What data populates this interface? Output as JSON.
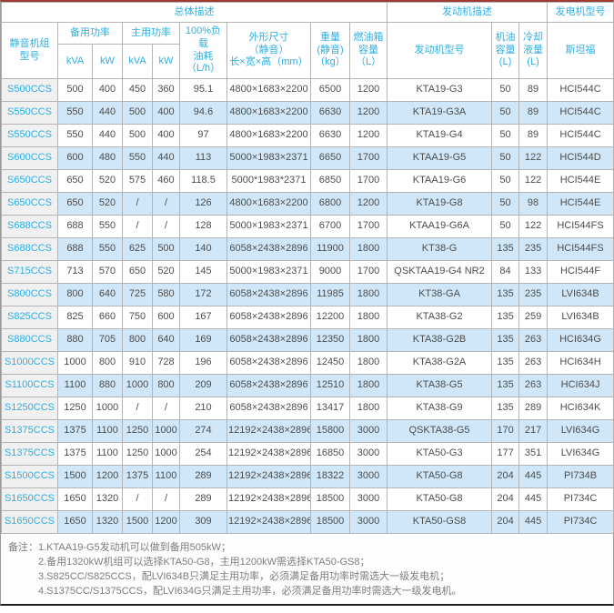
{
  "page": {
    "accent_color": "#9e3a32",
    "link_color": "#2eafe4",
    "alt_row_color": "#cfe7f8"
  },
  "table": {
    "group_headers": {
      "general": "总体描述",
      "engine": "发动机描述",
      "generator": "发电机型号"
    },
    "headers": {
      "model": "静音机组\n型号",
      "standby_power": "备用功率",
      "prime_power": "主用功率",
      "standby_kva": "kVA",
      "standby_kw": "kW",
      "prime_kva": "kVA",
      "prime_kw": "kW",
      "fuel_consumption": "100%负载\n油耗\n（L/h）",
      "dimensions": "外形尺寸\n（静音）\n长×宽×高（mm）",
      "weight": "重量\n(静音)\n（kg）",
      "fuel_tank": "燃油箱\n容量\n（L）",
      "engine_model": "发动机型号",
      "oil_capacity": "机油\n容量\n(L)",
      "coolant_capacity": "冷却\n液量\n(L)",
      "stamford": "斯坦福"
    },
    "rows": [
      [
        "S500CCS",
        "500",
        "400",
        "450",
        "360",
        "95.1",
        "4800×1683×2200",
        "6500",
        "1200",
        "KTA19-G3",
        "50",
        "89",
        "HCI544C"
      ],
      [
        "S550CCS",
        "550",
        "440",
        "500",
        "400",
        "94.6",
        "4800×1683×2200",
        "6630",
        "1200",
        "KTA19-G3A",
        "50",
        "89",
        "HCI544C"
      ],
      [
        "S550CCS",
        "550",
        "440",
        "500",
        "400",
        "97",
        "4800×1683×2200",
        "6630",
        "1200",
        "KTA19-G4",
        "50",
        "89",
        "HCI544C"
      ],
      [
        "S600CCS",
        "600",
        "480",
        "550",
        "440",
        "113",
        "5000×1983×2371",
        "6650",
        "1700",
        "KTAA19-G5",
        "50",
        "122",
        "HCI544D"
      ],
      [
        "S650CCS",
        "650",
        "520",
        "575",
        "460",
        "118.5",
        "5000*1983*2371",
        "6850",
        "1700",
        "KTAA19-G6",
        "50",
        "122",
        "HCI544E"
      ],
      [
        "S650CCS",
        "650",
        "520",
        "/",
        "/",
        "126",
        "4800×1683×2200",
        "6800",
        "1200",
        "KTA19-G8",
        "50",
        "98",
        "HCI544E"
      ],
      [
        "S688CCS",
        "688",
        "550",
        "/",
        "/",
        "128",
        "5000×1983×2371",
        "6700",
        "1700",
        "KTAA19-G6A",
        "50",
        "122",
        "HCI544FS"
      ],
      [
        "S688CCS",
        "688",
        "550",
        "625",
        "500",
        "140",
        "6058×2438×2896",
        "11900",
        "1800",
        "KT38-G",
        "135",
        "235",
        "HCI544FS"
      ],
      [
        "S715CCS",
        "713",
        "570",
        "650",
        "520",
        "145",
        "5000×1983×2371",
        "9000",
        "1700",
        "QSKTAA19-G4 NR2",
        "84",
        "133",
        "HCI544F"
      ],
      [
        "S800CCS",
        "800",
        "640",
        "725",
        "580",
        "172",
        "6058×2438×2896",
        "11985",
        "1800",
        "KT38-GA",
        "135",
        "235",
        "LVI634B"
      ],
      [
        "S825CCS",
        "825",
        "660",
        "750",
        "600",
        "167",
        "6058×2438×2896",
        "12200",
        "1800",
        "KTA38-G2",
        "135",
        "259",
        "LVI634B"
      ],
      [
        "S880CCS",
        "880",
        "705",
        "800",
        "640",
        "169",
        "6058×2438×2896",
        "12350",
        "1800",
        "KTA38-G2B",
        "135",
        "263",
        "HCI634G"
      ],
      [
        "S1000CCS",
        "1000",
        "800",
        "910",
        "728",
        "196",
        "6058×2438×2896",
        "12450",
        "1800",
        "KTA38-G2A",
        "135",
        "263",
        "HCI634H"
      ],
      [
        "S1100CCS",
        "1100",
        "880",
        "1000",
        "800",
        "209",
        "6058×2438×2896",
        "12510",
        "1800",
        "KTA38-G5",
        "135",
        "263",
        "HCI634J"
      ],
      [
        "S1250CCS",
        "1250",
        "1000",
        "/",
        "/",
        "210",
        "6058×2438×2896",
        "13417",
        "1800",
        "KTA38-G9",
        "135",
        "289",
        "HCI634K"
      ],
      [
        "S1375CCS",
        "1375",
        "1100",
        "1250",
        "1000",
        "274",
        "12192×2438×2896",
        "15800",
        "3000",
        "QSKTA38-G5",
        "170",
        "217",
        "LVI634G"
      ],
      [
        "S1375CCS",
        "1375",
        "1100",
        "1250",
        "1000",
        "254",
        "12192×2438×2896",
        "16850",
        "3000",
        "KTA50-G3",
        "177",
        "351",
        "LVI634G"
      ],
      [
        "S1500CCS",
        "1500",
        "1200",
        "1375",
        "1100",
        "289",
        "12192×2438×2896",
        "18322",
        "3000",
        "KTA50-G8",
        "204",
        "445",
        "PI734B"
      ],
      [
        "S1650CCS",
        "1650",
        "1320",
        "/",
        "/",
        "289",
        "12192×2438×2896",
        "18500",
        "3000",
        "KTA50-G8",
        "204",
        "445",
        "PI734C"
      ],
      [
        "S1650CCS",
        "1650",
        "1320",
        "1500",
        "1200",
        "309",
        "12192×2438×2896",
        "18500",
        "3000",
        "KTA50-GS8",
        "204",
        "445",
        "PI734C"
      ]
    ]
  },
  "notes": {
    "label": "备注：",
    "lines": [
      "1.KTAA19-G5发动机可以做到备用505kW；",
      "2.备用1320kW机组可以选择KTA50-G8，主用1200kW需选择KTA50-GS8；",
      "3.S825CC/S825CCS，配LVI634B只满足主用功率，必须满足备用功率时需选大一级发电机；",
      "4.S1375CC/S1375CCS，配LVI634G只满足主用功率，必须满足备用功率时需选大一级发电机。"
    ]
  }
}
